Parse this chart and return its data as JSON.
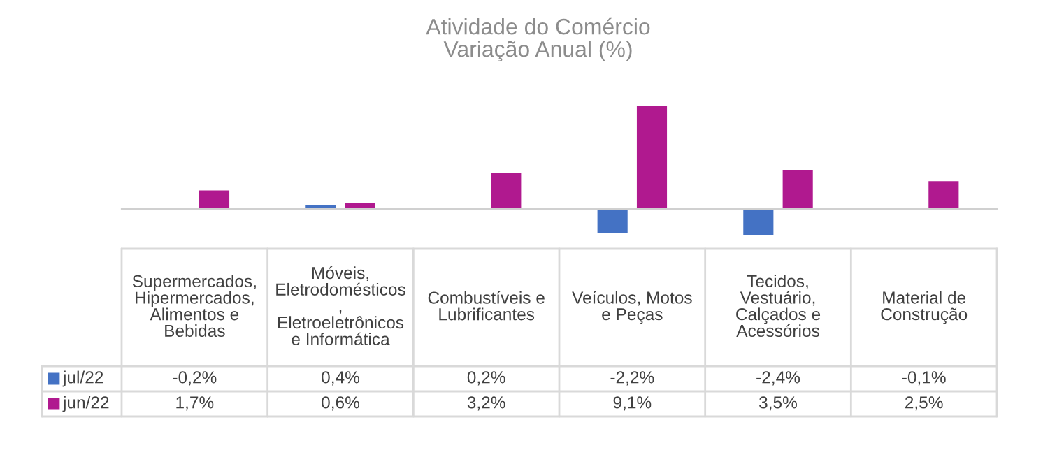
{
  "chart_data": {
    "type": "bar",
    "title": "Atividade do Comércio\nVariação Anual (%)",
    "categories": [
      "Supermercados,\nHipermercados,\nAlimentos e\nBebidas",
      "Móveis,\nEletrodomésticos\n,\nEletroeletrônicos\ne Informática",
      "Combustíveis e\nLubrificantes",
      "Veículos, Motos\ne Peças",
      "Tecidos,\nVestuário,\nCalçados e\nAcessórios",
      "Material de\nConstrução"
    ],
    "series": [
      {
        "name": "jul/22",
        "color": "#4472c4",
        "values": [
          -0.2,
          0.4,
          0.2,
          -2.2,
          -2.4,
          -0.1
        ],
        "value_labels": [
          "-0,2%",
          "0,4%",
          "0,2%",
          "-2,2%",
          "-2,4%",
          "-0,1%"
        ]
      },
      {
        "name": "jun/22",
        "color": "#b0198f",
        "values": [
          1.7,
          0.6,
          3.2,
          9.1,
          3.5,
          2.5
        ],
        "value_labels": [
          "1,7%",
          "0,6%",
          "3,2%",
          "9,1%",
          "3,5%",
          "2,5%"
        ]
      }
    ],
    "legend": "bottom"
  }
}
